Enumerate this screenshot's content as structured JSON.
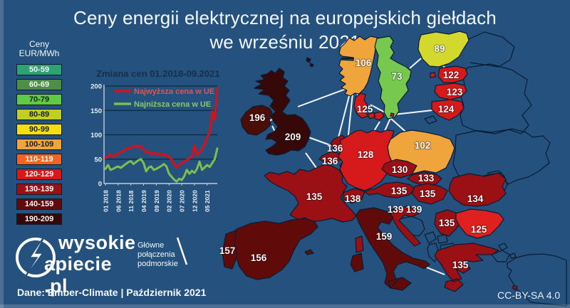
{
  "title": {
    "line1": "Ceny energii elektrycznej na europejskich giełdach",
    "line2": "we wrześniu 2021"
  },
  "colors": {
    "background": "#24517D",
    "map_outline": "#0B1C30",
    "connection_line": "#FFFFFF",
    "chart_grid": "#0E2840",
    "chart_axis": "#C2CFDA",
    "chart_title_color": "#16304C",
    "tick_text": "#E8EFF5",
    "map_label_text": "#F5F5F5"
  },
  "legend": {
    "heading_line1": "Ceny",
    "heading_line2": "EUR/MWh",
    "bands": [
      {
        "range": "50-59",
        "color": "#2DA273",
        "text": "#F2F6F6"
      },
      {
        "range": "60-69",
        "color": "#4F8F45",
        "text": "#F2F6F6"
      },
      {
        "range": "70-79",
        "color": "#5FCB40",
        "text": "#14212E"
      },
      {
        "range": "80-89",
        "color": "#C2CE21",
        "text": "#14212E"
      },
      {
        "range": "90-99",
        "color": "#F7DE10",
        "text": "#14212E"
      },
      {
        "range": "100-109",
        "color": "#F0A43C",
        "text": "#14212E"
      },
      {
        "range": "110-119",
        "color": "#F4641D",
        "text": "#F7F7F7"
      },
      {
        "range": "120-129",
        "color": "#D61A1C",
        "text": "#F7F7F7"
      },
      {
        "range": "130-139",
        "color": "#9A1014",
        "text": "#F7F7F7"
      },
      {
        "range": "140-159",
        "color": "#600A0A",
        "text": "#F7F7F7"
      },
      {
        "range": "190-209",
        "color": "#370808",
        "text": "#F7F7F7"
      }
    ]
  },
  "chart_data": {
    "type": "line",
    "title": "Zmiana cen 01.2018-09.2021",
    "xlabel": "",
    "ylabel": "",
    "ylim": [
      0,
      200
    ],
    "yticks": [
      0,
      50,
      100,
      150,
      200
    ],
    "grid": true,
    "legend_position": "top-left inside",
    "x_tick_labels": [
      "01 2018",
      "06 2018",
      "11 2018",
      "04 2019",
      "09 2019",
      "02 2020",
      "07 2020",
      "12 2020",
      "05 2021"
    ],
    "months_span": "01.2018-09.2021",
    "series": [
      {
        "name": "Najwyższa cena w UE",
        "color": "#D3121E",
        "label_color": "#E25352",
        "values": [
          52,
          56,
          60,
          55,
          58,
          61,
          64,
          67,
          70,
          74,
          72,
          76,
          78,
          74,
          77,
          70,
          63,
          66,
          60,
          63,
          60,
          62,
          58,
          61,
          57,
          55,
          50,
          40,
          33,
          38,
          42,
          45,
          48,
          52,
          55,
          78,
          58,
          64,
          71,
          80,
          95,
          105,
          148,
          131,
          195
        ]
      },
      {
        "name": "Najniższa cena w UE",
        "color": "#7CBF4E",
        "label_color": "#8CC766",
        "values": [
          30,
          38,
          28,
          30,
          33,
          35,
          32,
          36,
          40,
          44,
          46,
          40,
          44,
          48,
          50,
          42,
          25,
          33,
          35,
          28,
          30,
          33,
          36,
          40,
          35,
          20,
          14,
          8,
          4,
          10,
          7,
          15,
          28,
          20,
          26,
          22,
          30,
          45,
          28,
          33,
          38,
          34,
          42,
          50,
          72
        ]
      }
    ]
  },
  "map": {
    "unit": "EUR/MWh",
    "countries": [
      {
        "id": "norway",
        "value": "106",
        "band": "100-109"
      },
      {
        "id": "sweden",
        "value": "73",
        "band": "70-79",
        "fill": "#76C94E"
      },
      {
        "id": "finland",
        "value": "89",
        "band": "80-89",
        "fill": "#D3D82E"
      },
      {
        "id": "estonia",
        "value": "122",
        "band": "120-129"
      },
      {
        "id": "latvia",
        "value": "123",
        "band": "120-129"
      },
      {
        "id": "lithuania",
        "value": "124",
        "band": "120-129"
      },
      {
        "id": "ireland",
        "value": "196",
        "band": "190-209",
        "fill": "#4A0D07"
      },
      {
        "id": "uk",
        "value": "209",
        "band": "190-209"
      },
      {
        "id": "denmark",
        "value": "125",
        "band": "120-129"
      },
      {
        "id": "netherlands",
        "value": "136",
        "band": "130-139"
      },
      {
        "id": "belgium",
        "value": "136",
        "band": "130-139"
      },
      {
        "id": "luxembourg",
        "value": "",
        "band": "130-139"
      },
      {
        "id": "germany",
        "value": "128",
        "band": "120-129"
      },
      {
        "id": "poland",
        "value": "102",
        "band": "100-109"
      },
      {
        "id": "czechia",
        "value": "130",
        "band": "130-139"
      },
      {
        "id": "slovakia",
        "value": "133",
        "band": "130-139"
      },
      {
        "id": "austria",
        "value": "135",
        "band": "130-139"
      },
      {
        "id": "hungary",
        "value": "135",
        "band": "130-139"
      },
      {
        "id": "switzerland",
        "value": "138",
        "band": "130-139"
      },
      {
        "id": "france",
        "value": "135",
        "band": "130-139"
      },
      {
        "id": "slovenia",
        "value": "139",
        "band": "130-139"
      },
      {
        "id": "croatia",
        "value": "139",
        "band": "130-139"
      },
      {
        "id": "italy",
        "value": "159",
        "band": "140-159"
      },
      {
        "id": "romania",
        "value": "134",
        "band": "130-139"
      },
      {
        "id": "serbia",
        "value": "135",
        "band": "130-139"
      },
      {
        "id": "bulgaria",
        "value": "125",
        "band": "120-129",
        "fill": "#E0201E"
      },
      {
        "id": "greece",
        "value": "135",
        "band": "130-139"
      },
      {
        "id": "spain",
        "value": "156",
        "band": "140-159"
      },
      {
        "id": "portugal",
        "value": "157",
        "band": "140-159"
      }
    ]
  },
  "connections": {
    "line1": "Główne",
    "line2": "połączenia",
    "line3": "podmorskie"
  },
  "logo": {
    "line1": "wysokie",
    "line2": "apiecie .pl"
  },
  "footer": {
    "source": "Dane: Ember-Climate |  Październik 2021",
    "license": "CC-BY-SA 4.0"
  }
}
